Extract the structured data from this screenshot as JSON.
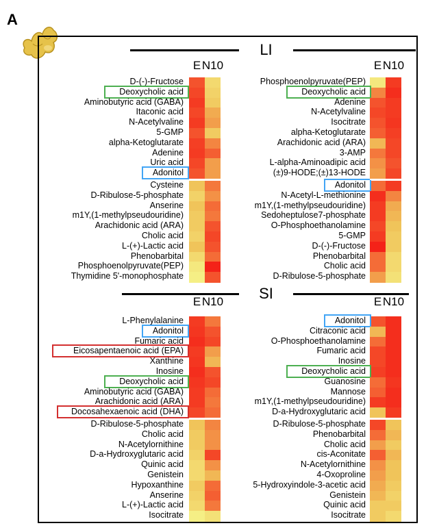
{
  "panel_letter": "A",
  "colors": {
    "highlight_green": "#4caf50",
    "highlight_blue": "#42a5f5",
    "highlight_red": "#d32f2f"
  },
  "icon": "ginger-root-icon",
  "chart_data": [
    {
      "type": "heatmap",
      "section": "LI",
      "title": "LI",
      "columns": [
        "E",
        "N10"
      ],
      "rows": [
        "D-(-)-Fructose",
        "Deoxycholic acid",
        "Aminobutyric acid (GABA)",
        "Itaconic acid",
        "N-Acetylvaline",
        "5-GMP",
        "alpha-Ketoglutarate",
        "Adenine",
        "Uric acid",
        "Adonitol",
        "Cysteine",
        "D-Ribulose-5-phosphate",
        "Anserine",
        "m1Y,(1-methylpseudouridine)",
        "Arachidonic acid (ARA)",
        "Cholic acid",
        "L-(+)-Lactic acid",
        "Phenobarbital",
        "Phosphoenolpyruvate(PEP)",
        "Thymidine 5'-monophosphate"
      ],
      "values": [
        [
          0.8,
          0.2
        ],
        [
          0.85,
          0.25
        ],
        [
          0.9,
          0.3
        ],
        [
          0.85,
          0.45
        ],
        [
          0.9,
          0.5
        ],
        [
          0.8,
          0.3
        ],
        [
          0.88,
          0.6
        ],
        [
          0.9,
          0.75
        ],
        [
          0.85,
          0.5
        ],
        [
          0.8,
          0.5
        ],
        [
          0.35,
          0.65
        ],
        [
          0.25,
          0.55
        ],
        [
          0.35,
          0.7
        ],
        [
          0.3,
          0.65
        ],
        [
          0.3,
          0.8
        ],
        [
          0.25,
          0.85
        ],
        [
          0.35,
          0.8
        ],
        [
          0.2,
          0.7
        ],
        [
          0.1,
          1.0
        ],
        [
          0.05,
          0.8
        ]
      ],
      "split_after": 10,
      "highlights": {
        "Deoxycholic acid": "green",
        "Adonitol": "blue"
      }
    },
    {
      "type": "heatmap",
      "section": "LI",
      "title": "",
      "columns": [
        "E",
        "N10"
      ],
      "rows": [
        "Phosphoenolpyruvate(PEP)",
        "Deoxycholic acid",
        "Adenine",
        "N-Acetylvaline",
        "Isocitrate",
        "alpha-Ketoglutarate",
        "Arachidonic acid (ARA)",
        "3-AMP",
        "L-alpha-Aminoadipic acid",
        "(±)9-HODE;(±)13-HODE",
        "Adonitol",
        "N-Acetyl-L-methionine",
        "m1Y,(1-methylpseudouridine)",
        "Sedoheptulose7-phosphate",
        "O-Phosphoethanolamine",
        "5-GMP",
        "D-(-)-Fructose",
        "Phenobarbital",
        "Cholic acid",
        "D-Ribulose-5-phosphate"
      ],
      "values": [
        [
          0.1,
          0.9
        ],
        [
          0.6,
          0.95
        ],
        [
          0.8,
          0.9
        ],
        [
          0.85,
          0.9
        ],
        [
          0.8,
          0.92
        ],
        [
          0.75,
          0.88
        ],
        [
          0.4,
          0.85
        ],
        [
          0.65,
          0.85
        ],
        [
          0.55,
          0.8
        ],
        [
          0.5,
          0.85
        ],
        [
          0.7,
          0.9
        ],
        [
          0.95,
          0.6
        ],
        [
          0.9,
          0.45
        ],
        [
          0.9,
          0.4
        ],
        [
          0.85,
          0.35
        ],
        [
          0.9,
          0.3
        ],
        [
          1.0,
          0.3
        ],
        [
          0.7,
          0.2
        ],
        [
          0.7,
          0.2
        ],
        [
          0.5,
          0.15
        ]
      ],
      "split_after": 10,
      "highlights": {
        "Deoxycholic acid": "green",
        "Adonitol": "blue"
      }
    },
    {
      "type": "heatmap",
      "section": "SI",
      "title": "SI",
      "columns": [
        "E",
        "N10"
      ],
      "rows": [
        "L-Phenylalanine",
        "Adonitol",
        "Fumaric acid",
        "Eicosapentaenoic acid (EPA)",
        "Xanthine",
        "Inosine",
        "Deoxycholic acid",
        "Aminobutyric acid (GABA)",
        "Arachidonic acid (ARA)",
        "Docosahexaenoic acid (DHA)",
        "D-Ribulose-5-phosphate",
        "Cholic acid",
        "N-Acetylornithine",
        "D-a-Hydroxyglutaric acid",
        "Quinic acid",
        "Genistein",
        "Hypoxanthine",
        "Anserine",
        "L-(+)-Lactic acid",
        "Isocitrate"
      ],
      "values": [
        [
          0.9,
          0.65
        ],
        [
          0.92,
          0.8
        ],
        [
          0.95,
          0.85
        ],
        [
          0.9,
          0.5
        ],
        [
          0.92,
          0.4
        ],
        [
          0.95,
          0.8
        ],
        [
          0.92,
          0.85
        ],
        [
          0.9,
          0.7
        ],
        [
          0.9,
          0.65
        ],
        [
          0.85,
          0.7
        ],
        [
          0.35,
          0.6
        ],
        [
          0.3,
          0.55
        ],
        [
          0.3,
          0.55
        ],
        [
          0.25,
          0.85
        ],
        [
          0.2,
          0.55
        ],
        [
          0.2,
          0.4
        ],
        [
          0.3,
          0.7
        ],
        [
          0.25,
          0.75
        ],
        [
          0.2,
          0.65
        ],
        [
          0.05,
          0.15
        ]
      ],
      "split_after": 10,
      "highlights": {
        "Adonitol": "blue",
        "Eicosapentaenoic acid (EPA)": "red",
        "Deoxycholic acid": "green",
        "Docosahexaenoic acid (DHA)": "red"
      }
    },
    {
      "type": "heatmap",
      "section": "SI",
      "title": "",
      "columns": [
        "E",
        "N10"
      ],
      "rows": [
        "Adonitol",
        "Citraconic acid",
        "O-Phosphoethanolamine",
        "Fumaric acid",
        "Inosine",
        "Deoxycholic acid",
        "Guanosine",
        "Mannose",
        "m1Y,(1-methylpseudouridine)",
        "D-a-Hydroxyglutaric acid",
        "D-Ribulose-5-phosphate",
        "Phenobarbital",
        "Cholic acid",
        "cis-Aconitate",
        "N-Acetylornithine",
        "4-Oxoproline",
        "5-Hydroxyindole-3-acetic acid",
        "Genistein",
        "Quinic acid",
        "Isocitrate"
      ],
      "values": [
        [
          0.8,
          0.95
        ],
        [
          0.4,
          0.95
        ],
        [
          0.7,
          0.95
        ],
        [
          0.85,
          0.95
        ],
        [
          0.85,
          0.95
        ],
        [
          0.88,
          0.95
        ],
        [
          0.7,
          0.92
        ],
        [
          0.75,
          0.95
        ],
        [
          0.9,
          0.95
        ],
        [
          0.35,
          0.9
        ],
        [
          0.85,
          0.35
        ],
        [
          0.7,
          0.4
        ],
        [
          0.5,
          0.3
        ],
        [
          0.75,
          0.4
        ],
        [
          0.55,
          0.35
        ],
        [
          0.5,
          0.35
        ],
        [
          0.45,
          0.3
        ],
        [
          0.4,
          0.25
        ],
        [
          0.3,
          0.3
        ],
        [
          0.3,
          0.2
        ]
      ],
      "split_after": 10,
      "highlights": {
        "Adonitol": "blue",
        "Deoxycholic acid": "green"
      }
    }
  ]
}
